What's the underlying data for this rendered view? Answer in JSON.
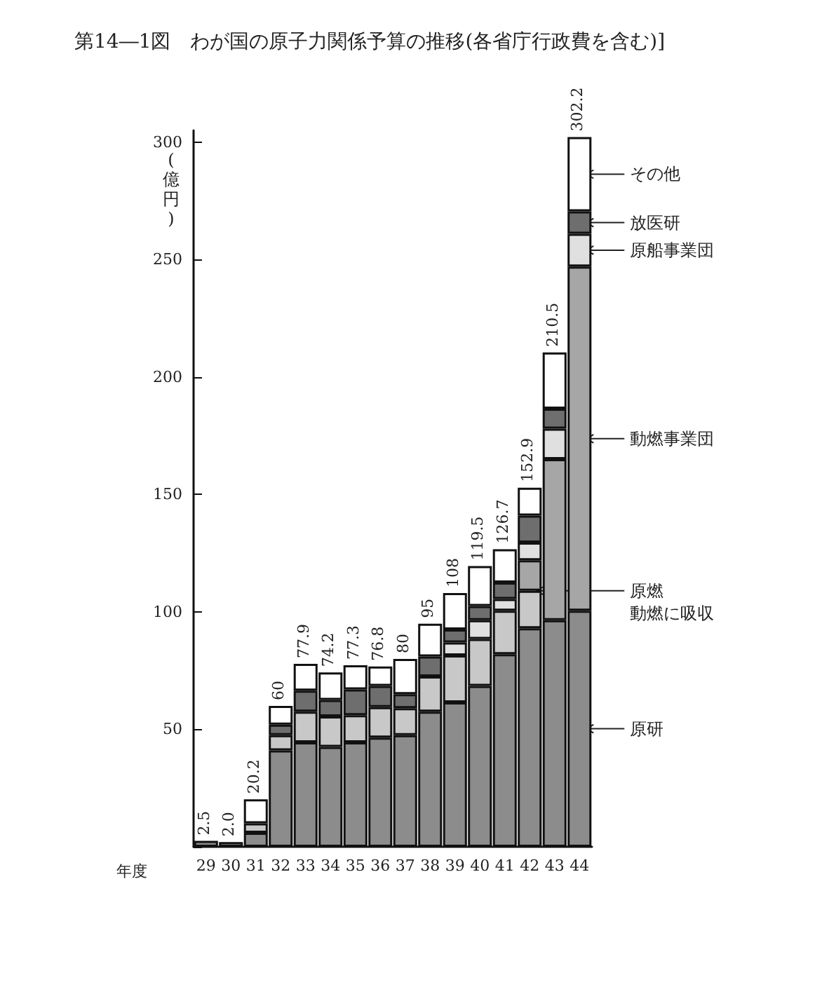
{
  "chart_data": {
    "type": "bar",
    "stacked": true,
    "title": "第14―1図　わが国の原子力関係予算の推移(各省庁行政費を含む)]",
    "ylabel": "(億円)",
    "xlabel": "年度",
    "categories": [
      "29",
      "30",
      "31",
      "32",
      "33",
      "34",
      "35",
      "36",
      "37",
      "38",
      "39",
      "40",
      "41",
      "42",
      "43",
      "44"
    ],
    "series": [
      {
        "name": "原研",
        "color": "#8c8c8c",
        "values": [
          2.5,
          2.0,
          6,
          41,
          44.5,
          42.5,
          44.5,
          46.5,
          47.5,
          57.5,
          61.5,
          68.5,
          82,
          93,
          96.5,
          100.5
        ]
      },
      {
        "name": "原燃",
        "color": "#c8c8c8",
        "values": [
          null,
          null,
          4,
          6.5,
          13,
          13,
          11.5,
          13,
          11.5,
          15,
          20,
          20,
          18.5,
          16,
          null,
          null
        ]
      },
      {
        "name": "動燃事業団",
        "color": "#a6a6a6",
        "values": [
          null,
          null,
          null,
          null,
          null,
          null,
          null,
          null,
          null,
          null,
          null,
          null,
          null,
          13,
          68.5,
          146.5
        ]
      },
      {
        "name": "原船事業団",
        "color": "#e0e0e0",
        "values": [
          null,
          null,
          null,
          null,
          null,
          null,
          null,
          null,
          null,
          null,
          5.5,
          8,
          5,
          7.5,
          13,
          14
        ]
      },
      {
        "name": "放医研",
        "color": "#6e6e6e",
        "values": [
          null,
          null,
          null,
          4.5,
          9,
          7,
          11,
          9,
          6,
          8.5,
          5.5,
          6,
          7,
          11.5,
          8.5,
          9.5
        ]
      },
      {
        "name": "その他",
        "color": "#ffffff",
        "values": [
          null,
          null,
          10.2,
          8,
          11.4,
          11.7,
          10.3,
          8.3,
          15,
          14,
          15.5,
          17,
          14.2,
          11.9,
          24,
          31.7
        ]
      }
    ],
    "totals": [
      "2.5",
      "2.0",
      "20.2",
      "60",
      "77.9",
      "74.2",
      "77.3",
      "76.8",
      "80",
      "95",
      "108",
      "119.5",
      "126.7",
      "152.9",
      "210.5",
      "302.2"
    ],
    "annotations": [
      {
        "text": "動燃に吸収",
        "x": "42",
        "y": 109
      }
    ],
    "ylim": [
      0,
      305
    ],
    "yticks": [
      {
        "value": 0,
        "label": null
      },
      50,
      100,
      150,
      200,
      250,
      300
    ],
    "grid": false,
    "legend": false
  }
}
